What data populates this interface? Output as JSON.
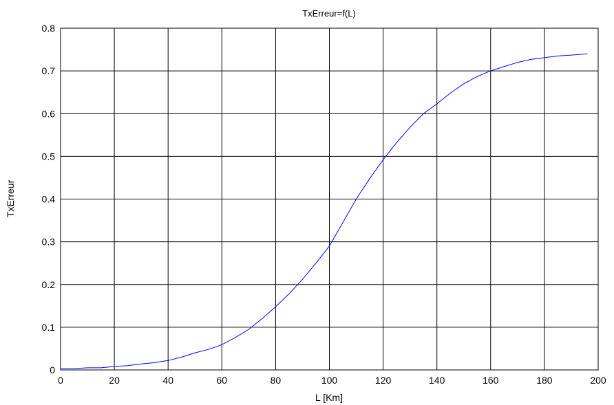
{
  "chart_data": {
    "type": "line",
    "title": "TxErreur=f(L)",
    "xlabel": "L [Km]",
    "ylabel": "TxErreur",
    "xlim": [
      0,
      200
    ],
    "ylim": [
      0,
      0.8
    ],
    "xticks": [
      0,
      20,
      40,
      60,
      80,
      100,
      120,
      140,
      160,
      180,
      200
    ],
    "yticks": [
      0,
      0.1,
      0.2,
      0.3,
      0.4,
      0.5,
      0.6,
      0.7,
      0.8
    ],
    "xtick_labels": [
      "0",
      "20",
      "40",
      "60",
      "80",
      "100",
      "120",
      "140",
      "160",
      "180",
      "200"
    ],
    "ytick_labels": [
      "0",
      "0.1",
      "0.2",
      "0.3",
      "0.4",
      "0.5",
      "0.6",
      "0.7",
      "0.8"
    ],
    "grid": true,
    "series": [
      {
        "color": "#0000ff",
        "x": [
          0,
          5,
          10,
          15,
          20,
          25,
          30,
          35,
          40,
          45,
          50,
          55,
          60,
          65,
          70,
          75,
          80,
          85,
          90,
          95,
          100,
          105,
          110,
          115,
          120,
          125,
          130,
          135,
          140,
          145,
          150,
          155,
          160,
          165,
          170,
          175,
          180,
          185,
          190,
          196
        ],
        "y": [
          0.003,
          0.003,
          0.005,
          0.005,
          0.008,
          0.01,
          0.014,
          0.017,
          0.022,
          0.03,
          0.04,
          0.048,
          0.059,
          0.076,
          0.095,
          0.12,
          0.148,
          0.178,
          0.212,
          0.25,
          0.29,
          0.345,
          0.4,
          0.448,
          0.492,
          0.532,
          0.568,
          0.6,
          0.623,
          0.648,
          0.67,
          0.687,
          0.7,
          0.71,
          0.72,
          0.727,
          0.731,
          0.735,
          0.737,
          0.74
        ]
      }
    ]
  }
}
